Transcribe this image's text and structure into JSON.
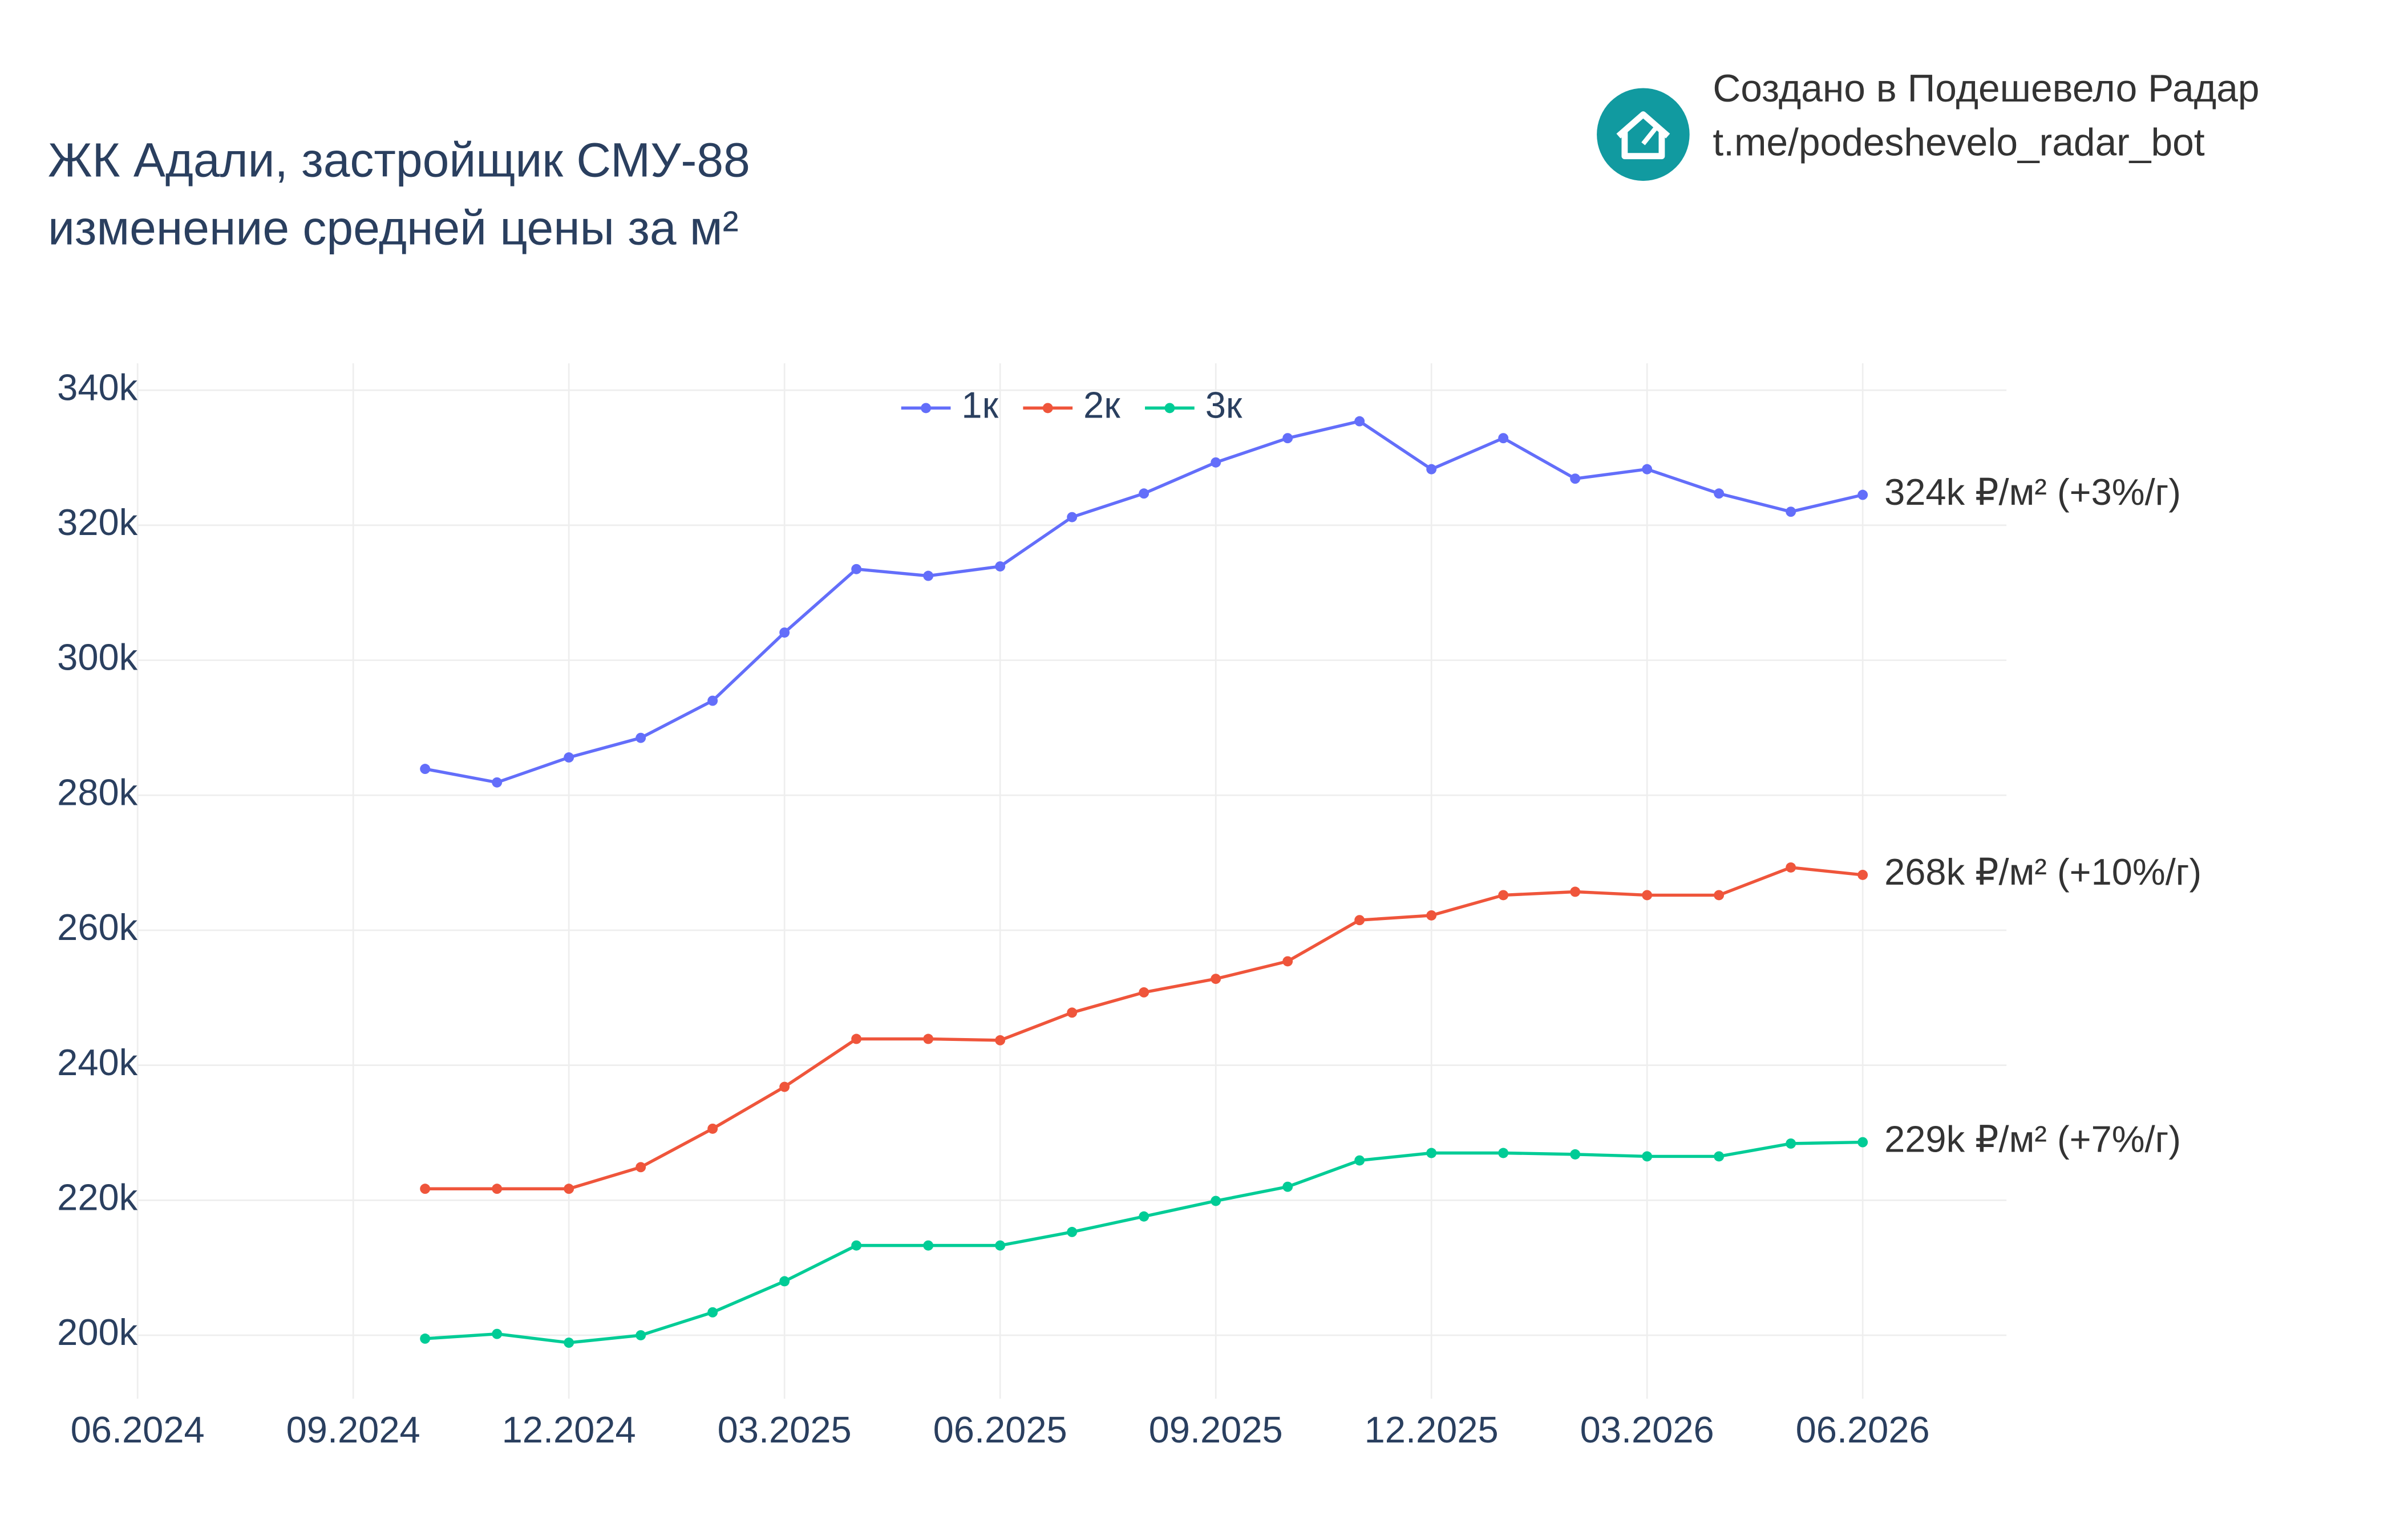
{
  "chart_data": {
    "type": "line",
    "title": "ЖК Адали, застройщик СМУ-88",
    "subtitle": "изменение средней цены за м²",
    "credit": [
      "Создано в Подешевело Радар",
      "t.me/podeshevelo_radar_bot"
    ],
    "x": [
      "10.2024",
      "11.2024",
      "12.2024",
      "01.2025",
      "02.2025",
      "03.2025",
      "04.2025",
      "05.2025",
      "06.2025",
      "07.2025",
      "08.2025",
      "09.2025",
      "10.2025",
      "11.2025",
      "12.2025",
      "01.2026",
      "02.2026",
      "03.2026",
      "04.2026",
      "05.2026",
      "06.2026"
    ],
    "series": [
      {
        "name": "1к",
        "color": "#636efa",
        "values": [
          283900,
          281900,
          285600,
          288500,
          294000,
          304100,
          313500,
          312500,
          313900,
          321200,
          324700,
          329300,
          332900,
          335400,
          328300,
          332900,
          326900,
          328300,
          324700,
          322000,
          324500
        ],
        "end_label": "324k ₽/м² (+3%/г)"
      },
      {
        "name": "2к",
        "color": "#ef553b",
        "values": [
          221700,
          221700,
          221700,
          224900,
          230600,
          236800,
          243900,
          243900,
          243700,
          247800,
          250800,
          252800,
          255400,
          261500,
          262200,
          265200,
          265700,
          265200,
          265200,
          269300,
          268200
        ],
        "end_label": "268k ₽/м² (+10%/г)"
      },
      {
        "name": "3к",
        "color": "#00cc96",
        "values": [
          199500,
          200200,
          198900,
          200000,
          203400,
          208000,
          213300,
          213300,
          213300,
          215300,
          217600,
          219900,
          222000,
          225900,
          227000,
          227000,
          226800,
          226500,
          226500,
          228400,
          228600
        ],
        "end_label": "229k ₽/м² (+7%/г)"
      }
    ],
    "xlim": [
      "06.2024",
      "08.2026"
    ],
    "xticks": [
      "06.2024",
      "09.2024",
      "12.2024",
      "03.2025",
      "06.2025",
      "09.2025",
      "12.2025",
      "03.2026",
      "06.2026"
    ],
    "ylim": [
      190600,
      344000
    ],
    "yticks": [
      {
        "value": 200000,
        "label": "200k"
      },
      {
        "value": 220000,
        "label": "220k"
      },
      {
        "value": 240000,
        "label": "240k"
      },
      {
        "value": 260000,
        "label": "260k"
      },
      {
        "value": 280000,
        "label": "280k"
      },
      {
        "value": 300000,
        "label": "300k"
      },
      {
        "value": 320000,
        "label": "320k"
      },
      {
        "value": 340000,
        "label": "340k"
      }
    ],
    "grid": true,
    "legend": "top"
  }
}
